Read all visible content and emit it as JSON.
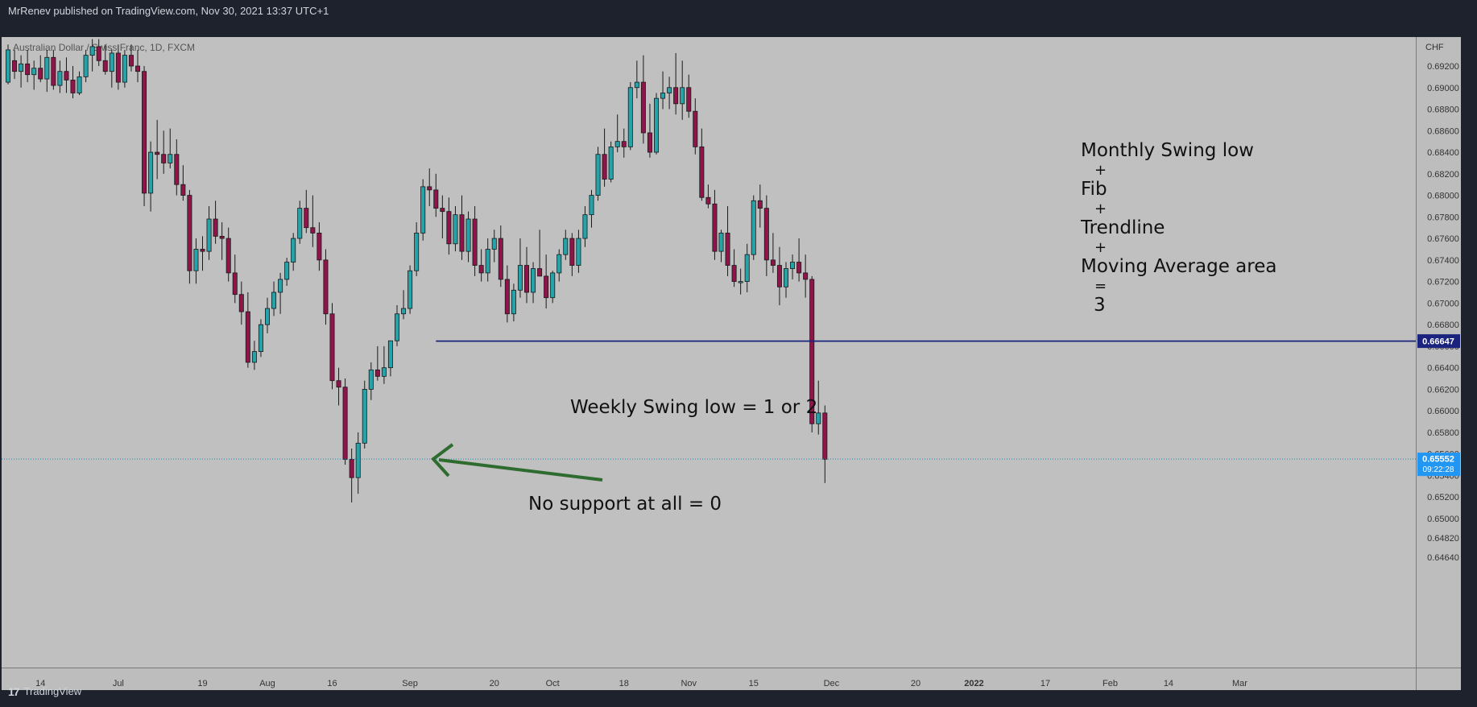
{
  "header": {
    "published": "MrRenev published on TradingView.com, Nov 30, 2021 13:37 UTC+1"
  },
  "footer": {
    "brand": "TradingView",
    "logo_glyph": "17"
  },
  "colors": {
    "plot_bg": "#c0c0c0",
    "axis_bg": "#bdbdbd",
    "frame": "#1e222d",
    "bull_body": "#26a2a9",
    "bear_body": "#8e1449",
    "hline": "#1a237e",
    "arrow": "#2e6b2e",
    "last_price": "#2196f3"
  },
  "chart_data": {
    "type": "candlestick",
    "symbol_label": "Australian Dollar / Swiss Franc, 1D, FXCM",
    "currency_label": "CHF",
    "ylim": [
      0.645,
      0.694
    ],
    "y_ticks": [
      "0.69200",
      "0.69000",
      "0.68800",
      "0.68600",
      "0.68400",
      "0.68200",
      "0.68000",
      "0.67800",
      "0.67600",
      "0.67400",
      "0.67200",
      "0.67000",
      "0.66800",
      "0.66600",
      "0.66400",
      "0.66200",
      "0.66000",
      "0.65800",
      "0.65600",
      "0.65400",
      "0.65200",
      "0.65000",
      "0.64820",
      "0.64640"
    ],
    "x_ticks": [
      {
        "label": "14",
        "index": 5
      },
      {
        "label": "Jul",
        "index": 17
      },
      {
        "label": "19",
        "index": 30
      },
      {
        "label": "Aug",
        "index": 40
      },
      {
        "label": "16",
        "index": 50
      },
      {
        "label": "Sep",
        "index": 62
      },
      {
        "label": "20",
        "index": 75
      },
      {
        "label": "Oct",
        "index": 84
      },
      {
        "label": "18",
        "index": 95
      },
      {
        "label": "Nov",
        "index": 105
      },
      {
        "label": "15",
        "index": 115
      },
      {
        "label": "Dec",
        "index": 127
      },
      {
        "label": "20",
        "index": 140
      },
      {
        "label": "2022",
        "index": 149
      },
      {
        "label": "17",
        "index": 160
      },
      {
        "label": "Feb",
        "index": 170
      },
      {
        "label": "14",
        "index": 179
      },
      {
        "label": "Mar",
        "index": 190
      }
    ],
    "x_count": 196,
    "candles": [
      {
        "o": 0.6905,
        "h": 0.694,
        "l": 0.6903,
        "c": 0.6935
      },
      {
        "o": 0.6925,
        "h": 0.6935,
        "l": 0.6908,
        "c": 0.6915
      },
      {
        "o": 0.6915,
        "h": 0.693,
        "l": 0.69,
        "c": 0.6922
      },
      {
        "o": 0.6922,
        "h": 0.6935,
        "l": 0.6905,
        "c": 0.6912
      },
      {
        "o": 0.6912,
        "h": 0.6925,
        "l": 0.6898,
        "c": 0.6918
      },
      {
        "o": 0.6918,
        "h": 0.693,
        "l": 0.6905,
        "c": 0.6908
      },
      {
        "o": 0.6908,
        "h": 0.6935,
        "l": 0.6896,
        "c": 0.6928
      },
      {
        "o": 0.6928,
        "h": 0.6935,
        "l": 0.6898,
        "c": 0.6902
      },
      {
        "o": 0.6902,
        "h": 0.6925,
        "l": 0.6895,
        "c": 0.6915
      },
      {
        "o": 0.6915,
        "h": 0.6928,
        "l": 0.6895,
        "c": 0.6907
      },
      {
        "o": 0.6907,
        "h": 0.692,
        "l": 0.689,
        "c": 0.6895
      },
      {
        "o": 0.6895,
        "h": 0.6915,
        "l": 0.6893,
        "c": 0.691
      },
      {
        "o": 0.691,
        "h": 0.6935,
        "l": 0.6905,
        "c": 0.693
      },
      {
        "o": 0.693,
        "h": 0.6945,
        "l": 0.6915,
        "c": 0.6938
      },
      {
        "o": 0.6938,
        "h": 0.6945,
        "l": 0.692,
        "c": 0.6925
      },
      {
        "o": 0.6925,
        "h": 0.694,
        "l": 0.6912,
        "c": 0.6915
      },
      {
        "o": 0.6915,
        "h": 0.6935,
        "l": 0.69,
        "c": 0.6932
      },
      {
        "o": 0.6932,
        "h": 0.694,
        "l": 0.6898,
        "c": 0.6905
      },
      {
        "o": 0.6905,
        "h": 0.6935,
        "l": 0.69,
        "c": 0.693
      },
      {
        "o": 0.693,
        "h": 0.694,
        "l": 0.6915,
        "c": 0.692
      },
      {
        "o": 0.692,
        "h": 0.6935,
        "l": 0.6905,
        "c": 0.6915
      },
      {
        "o": 0.6915,
        "h": 0.692,
        "l": 0.679,
        "c": 0.6802
      },
      {
        "o": 0.6802,
        "h": 0.685,
        "l": 0.6785,
        "c": 0.684
      },
      {
        "o": 0.684,
        "h": 0.687,
        "l": 0.6815,
        "c": 0.6838
      },
      {
        "o": 0.6838,
        "h": 0.686,
        "l": 0.682,
        "c": 0.683
      },
      {
        "o": 0.683,
        "h": 0.6862,
        "l": 0.6825,
        "c": 0.6838
      },
      {
        "o": 0.6838,
        "h": 0.6852,
        "l": 0.68,
        "c": 0.681
      },
      {
        "o": 0.681,
        "h": 0.6828,
        "l": 0.6795,
        "c": 0.68
      },
      {
        "o": 0.68,
        "h": 0.6805,
        "l": 0.6718,
        "c": 0.673
      },
      {
        "o": 0.673,
        "h": 0.676,
        "l": 0.6718,
        "c": 0.675
      },
      {
        "o": 0.675,
        "h": 0.6762,
        "l": 0.673,
        "c": 0.6748
      },
      {
        "o": 0.6748,
        "h": 0.679,
        "l": 0.674,
        "c": 0.6778
      },
      {
        "o": 0.6778,
        "h": 0.6795,
        "l": 0.6755,
        "c": 0.6762
      },
      {
        "o": 0.6762,
        "h": 0.6775,
        "l": 0.674,
        "c": 0.676
      },
      {
        "o": 0.676,
        "h": 0.677,
        "l": 0.672,
        "c": 0.6728
      },
      {
        "o": 0.6728,
        "h": 0.6745,
        "l": 0.67,
        "c": 0.6708
      },
      {
        "o": 0.6708,
        "h": 0.672,
        "l": 0.668,
        "c": 0.6692
      },
      {
        "o": 0.6692,
        "h": 0.671,
        "l": 0.664,
        "c": 0.6645
      },
      {
        "o": 0.6645,
        "h": 0.6665,
        "l": 0.6638,
        "c": 0.6655
      },
      {
        "o": 0.6655,
        "h": 0.6685,
        "l": 0.665,
        "c": 0.668
      },
      {
        "o": 0.668,
        "h": 0.6705,
        "l": 0.6672,
        "c": 0.6695
      },
      {
        "o": 0.6695,
        "h": 0.672,
        "l": 0.6688,
        "c": 0.671
      },
      {
        "o": 0.671,
        "h": 0.6728,
        "l": 0.669,
        "c": 0.6722
      },
      {
        "o": 0.6722,
        "h": 0.6742,
        "l": 0.6716,
        "c": 0.6738
      },
      {
        "o": 0.6738,
        "h": 0.6765,
        "l": 0.673,
        "c": 0.676
      },
      {
        "o": 0.676,
        "h": 0.6795,
        "l": 0.6755,
        "c": 0.6788
      },
      {
        "o": 0.6788,
        "h": 0.6805,
        "l": 0.6765,
        "c": 0.677
      },
      {
        "o": 0.677,
        "h": 0.68,
        "l": 0.6752,
        "c": 0.6765
      },
      {
        "o": 0.6765,
        "h": 0.6775,
        "l": 0.673,
        "c": 0.674
      },
      {
        "o": 0.674,
        "h": 0.675,
        "l": 0.668,
        "c": 0.669
      },
      {
        "o": 0.669,
        "h": 0.67,
        "l": 0.662,
        "c": 0.6628
      },
      {
        "o": 0.6628,
        "h": 0.664,
        "l": 0.6605,
        "c": 0.6622
      },
      {
        "o": 0.6622,
        "h": 0.663,
        "l": 0.655,
        "c": 0.6555
      },
      {
        "o": 0.6555,
        "h": 0.6565,
        "l": 0.6515,
        "c": 0.6538
      },
      {
        "o": 0.6538,
        "h": 0.658,
        "l": 0.6523,
        "c": 0.657
      },
      {
        "o": 0.657,
        "h": 0.6628,
        "l": 0.6565,
        "c": 0.662
      },
      {
        "o": 0.662,
        "h": 0.6645,
        "l": 0.661,
        "c": 0.6638
      },
      {
        "o": 0.6638,
        "h": 0.666,
        "l": 0.6628,
        "c": 0.6632
      },
      {
        "o": 0.6632,
        "h": 0.666,
        "l": 0.6625,
        "c": 0.664
      },
      {
        "o": 0.664,
        "h": 0.6665,
        "l": 0.6632,
        "c": 0.6665
      },
      {
        "o": 0.6665,
        "h": 0.6698,
        "l": 0.666,
        "c": 0.669
      },
      {
        "o": 0.669,
        "h": 0.6712,
        "l": 0.6685,
        "c": 0.6695
      },
      {
        "o": 0.6695,
        "h": 0.6735,
        "l": 0.669,
        "c": 0.673
      },
      {
        "o": 0.673,
        "h": 0.6775,
        "l": 0.6725,
        "c": 0.6765
      },
      {
        "o": 0.6765,
        "h": 0.6815,
        "l": 0.6758,
        "c": 0.6808
      },
      {
        "o": 0.6808,
        "h": 0.6825,
        "l": 0.679,
        "c": 0.6805
      },
      {
        "o": 0.6805,
        "h": 0.682,
        "l": 0.678,
        "c": 0.6788
      },
      {
        "o": 0.6788,
        "h": 0.68,
        "l": 0.676,
        "c": 0.6785
      },
      {
        "o": 0.6785,
        "h": 0.6798,
        "l": 0.6745,
        "c": 0.6755
      },
      {
        "o": 0.6755,
        "h": 0.679,
        "l": 0.6748,
        "c": 0.6782
      },
      {
        "o": 0.6782,
        "h": 0.68,
        "l": 0.674,
        "c": 0.6748
      },
      {
        "o": 0.6748,
        "h": 0.6785,
        "l": 0.6738,
        "c": 0.6778
      },
      {
        "o": 0.6778,
        "h": 0.679,
        "l": 0.6725,
        "c": 0.6735
      },
      {
        "o": 0.6735,
        "h": 0.675,
        "l": 0.672,
        "c": 0.6728
      },
      {
        "o": 0.6728,
        "h": 0.676,
        "l": 0.672,
        "c": 0.675
      },
      {
        "o": 0.675,
        "h": 0.6768,
        "l": 0.6738,
        "c": 0.676
      },
      {
        "o": 0.676,
        "h": 0.6772,
        "l": 0.6715,
        "c": 0.6722
      },
      {
        "o": 0.6722,
        "h": 0.6735,
        "l": 0.6682,
        "c": 0.669
      },
      {
        "o": 0.669,
        "h": 0.6718,
        "l": 0.6683,
        "c": 0.6712
      },
      {
        "o": 0.6712,
        "h": 0.676,
        "l": 0.6705,
        "c": 0.6735
      },
      {
        "o": 0.6735,
        "h": 0.6752,
        "l": 0.67,
        "c": 0.671
      },
      {
        "o": 0.671,
        "h": 0.6738,
        "l": 0.67,
        "c": 0.6732
      },
      {
        "o": 0.6732,
        "h": 0.6768,
        "l": 0.6725,
        "c": 0.6725
      },
      {
        "o": 0.6725,
        "h": 0.6745,
        "l": 0.6695,
        "c": 0.6705
      },
      {
        "o": 0.6705,
        "h": 0.673,
        "l": 0.67,
        "c": 0.6728
      },
      {
        "o": 0.6728,
        "h": 0.675,
        "l": 0.672,
        "c": 0.6745
      },
      {
        "o": 0.6745,
        "h": 0.6768,
        "l": 0.674,
        "c": 0.676
      },
      {
        "o": 0.676,
        "h": 0.6765,
        "l": 0.6725,
        "c": 0.6735
      },
      {
        "o": 0.6735,
        "h": 0.6768,
        "l": 0.6728,
        "c": 0.676
      },
      {
        "o": 0.676,
        "h": 0.679,
        "l": 0.6752,
        "c": 0.6782
      },
      {
        "o": 0.6782,
        "h": 0.6805,
        "l": 0.677,
        "c": 0.68
      },
      {
        "o": 0.68,
        "h": 0.6845,
        "l": 0.6795,
        "c": 0.6838
      },
      {
        "o": 0.6838,
        "h": 0.6862,
        "l": 0.6808,
        "c": 0.6815
      },
      {
        "o": 0.6815,
        "h": 0.685,
        "l": 0.6812,
        "c": 0.6845
      },
      {
        "o": 0.6845,
        "h": 0.6875,
        "l": 0.684,
        "c": 0.685
      },
      {
        "o": 0.685,
        "h": 0.6862,
        "l": 0.6835,
        "c": 0.6845
      },
      {
        "o": 0.6845,
        "h": 0.6905,
        "l": 0.6842,
        "c": 0.69
      },
      {
        "o": 0.69,
        "h": 0.6925,
        "l": 0.689,
        "c": 0.6905
      },
      {
        "o": 0.6905,
        "h": 0.693,
        "l": 0.6848,
        "c": 0.6858
      },
      {
        "o": 0.6858,
        "h": 0.6885,
        "l": 0.6835,
        "c": 0.684
      },
      {
        "o": 0.684,
        "h": 0.6895,
        "l": 0.6838,
        "c": 0.689
      },
      {
        "o": 0.689,
        "h": 0.6915,
        "l": 0.688,
        "c": 0.6895
      },
      {
        "o": 0.6895,
        "h": 0.691,
        "l": 0.688,
        "c": 0.69
      },
      {
        "o": 0.69,
        "h": 0.6932,
        "l": 0.6875,
        "c": 0.6885
      },
      {
        "o": 0.6885,
        "h": 0.6925,
        "l": 0.687,
        "c": 0.69
      },
      {
        "o": 0.69,
        "h": 0.6912,
        "l": 0.6872,
        "c": 0.6878
      },
      {
        "o": 0.6878,
        "h": 0.689,
        "l": 0.6838,
        "c": 0.6845
      },
      {
        "o": 0.6845,
        "h": 0.6862,
        "l": 0.6795,
        "c": 0.6798
      },
      {
        "o": 0.6798,
        "h": 0.681,
        "l": 0.6788,
        "c": 0.6792
      },
      {
        "o": 0.6792,
        "h": 0.6805,
        "l": 0.674,
        "c": 0.6748
      },
      {
        "o": 0.6748,
        "h": 0.6768,
        "l": 0.6738,
        "c": 0.6765
      },
      {
        "o": 0.6765,
        "h": 0.679,
        "l": 0.6725,
        "c": 0.6735
      },
      {
        "o": 0.6735,
        "h": 0.675,
        "l": 0.6715,
        "c": 0.672
      },
      {
        "o": 0.672,
        "h": 0.6732,
        "l": 0.6708,
        "c": 0.672
      },
      {
        "o": 0.672,
        "h": 0.6755,
        "l": 0.671,
        "c": 0.6745
      },
      {
        "o": 0.6745,
        "h": 0.68,
        "l": 0.674,
        "c": 0.6795
      },
      {
        "o": 0.6795,
        "h": 0.681,
        "l": 0.677,
        "c": 0.6788
      },
      {
        "o": 0.6788,
        "h": 0.68,
        "l": 0.6725,
        "c": 0.674
      },
      {
        "o": 0.674,
        "h": 0.6765,
        "l": 0.6728,
        "c": 0.6735
      },
      {
        "o": 0.6735,
        "h": 0.6752,
        "l": 0.6698,
        "c": 0.6715
      },
      {
        "o": 0.6715,
        "h": 0.6738,
        "l": 0.6705,
        "c": 0.6732
      },
      {
        "o": 0.6732,
        "h": 0.6745,
        "l": 0.6722,
        "c": 0.6738
      },
      {
        "o": 0.6738,
        "h": 0.676,
        "l": 0.672,
        "c": 0.6728
      },
      {
        "o": 0.6728,
        "h": 0.6745,
        "l": 0.6705,
        "c": 0.6722
      },
      {
        "o": 0.6722,
        "h": 0.6725,
        "l": 0.658,
        "c": 0.6588
      },
      {
        "o": 0.6588,
        "h": 0.6628,
        "l": 0.6578,
        "c": 0.6598
      },
      {
        "o": 0.6598,
        "h": 0.6605,
        "l": 0.6533,
        "c": 0.6555
      }
    ],
    "hline": {
      "value": 0.66647,
      "label": "0.66647",
      "start_index": 66
    },
    "last_price": {
      "value": 0.65552,
      "label": "0.65552",
      "countdown": "09:22:28"
    },
    "annotations": {
      "confluence_lines": [
        "Monthly Swing low",
        "+",
        "Fib",
        "+",
        "Trendline",
        "+",
        "Moving Average area",
        "=",
        "3"
      ],
      "weekly": "Weekly Swing low = 1 or 2",
      "no_support": "No support at all = 0"
    }
  }
}
